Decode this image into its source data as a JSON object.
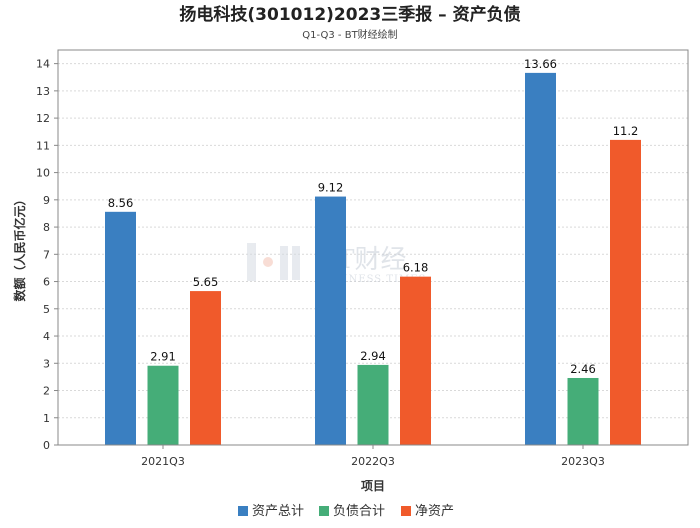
{
  "header": {
    "title": "扬电科技(301012)2023三季报 – 资产负债",
    "subtitle": "Q1-Q3 - BT财经绘制"
  },
  "watermark": {
    "main": "BT财经",
    "sub": "BUSINESS TIMES"
  },
  "chart_data": {
    "type": "bar",
    "categories": [
      "2021Q3",
      "2022Q3",
      "2023Q3"
    ],
    "series": [
      {
        "name": "资产总计",
        "color": "#3a7fc1",
        "values": [
          8.56,
          9.12,
          13.66
        ]
      },
      {
        "name": "负债合计",
        "color": "#45ad78",
        "values": [
          2.91,
          2.94,
          2.46
        ]
      },
      {
        "name": "净资产",
        "color": "#f05a2b",
        "values": [
          5.65,
          6.18,
          11.2
        ]
      }
    ],
    "data_labels": [
      [
        "8.56",
        "9.12",
        "13.66"
      ],
      [
        "2.91",
        "2.94",
        "2.46"
      ],
      [
        "5.65",
        "6.18",
        "11.2"
      ]
    ],
    "xlabel": "项目",
    "ylabel": "数额（人民币亿元）",
    "ylim": [
      0,
      14.5
    ],
    "yticks": [
      0,
      1,
      2,
      3,
      4,
      5,
      6,
      7,
      8,
      9,
      10,
      11,
      12,
      13,
      14
    ],
    "grid": true,
    "legend_position": "bottom-center"
  }
}
